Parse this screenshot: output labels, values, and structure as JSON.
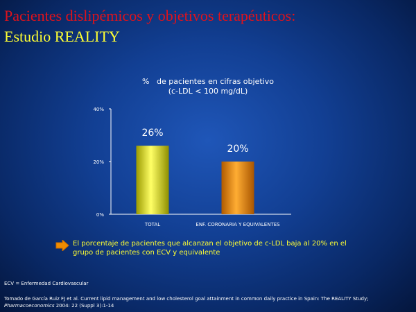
{
  "slide": {
    "title_line1": "Pacientes dislipémicos y objetivos terapéuticos:",
    "title_line2": "Estudio REALITY"
  },
  "chart_data": {
    "type": "bar",
    "title_line1": "%   de pacientes en cifras objetivo",
    "title_line2": "(c-LDL < 100 mg/dL)",
    "categories": [
      "TOTAL",
      "ENF. CORONARIA Y EQUIVALENTES"
    ],
    "values": [
      26,
      20
    ],
    "data_labels": [
      "26%",
      "20%"
    ],
    "ylim": [
      0,
      40
    ],
    "yticks": [
      "0%",
      "20%",
      "40%"
    ],
    "ytick_values": [
      0,
      20,
      40
    ],
    "xlabel": "",
    "ylabel": "",
    "grid": false,
    "bar_colors": [
      "#e6e600",
      "#f08c00"
    ]
  },
  "note": {
    "icon": "orange-arrow-icon",
    "text": "El porcentaje de pacientes que alcanzan el objetivo de c-LDL baja al 20% en el grupo de pacientes con ECV y equivalente"
  },
  "abbreviation": "ECV = Enfermedad Cardiovascular",
  "reference": {
    "prefix": "Tomado de García Ruiz FJ et al. Current lipid management and low cholesterol goal attainment in common daily practice in Spain: The REALITY Study;",
    "journal": "Pharmacoeconomics",
    "suffix": "2004: 22 (Suppl 3):1-14"
  },
  "colors": {
    "title_red": "#e0121b",
    "accent_yellow": "#ffff33",
    "background": "#123f93"
  }
}
